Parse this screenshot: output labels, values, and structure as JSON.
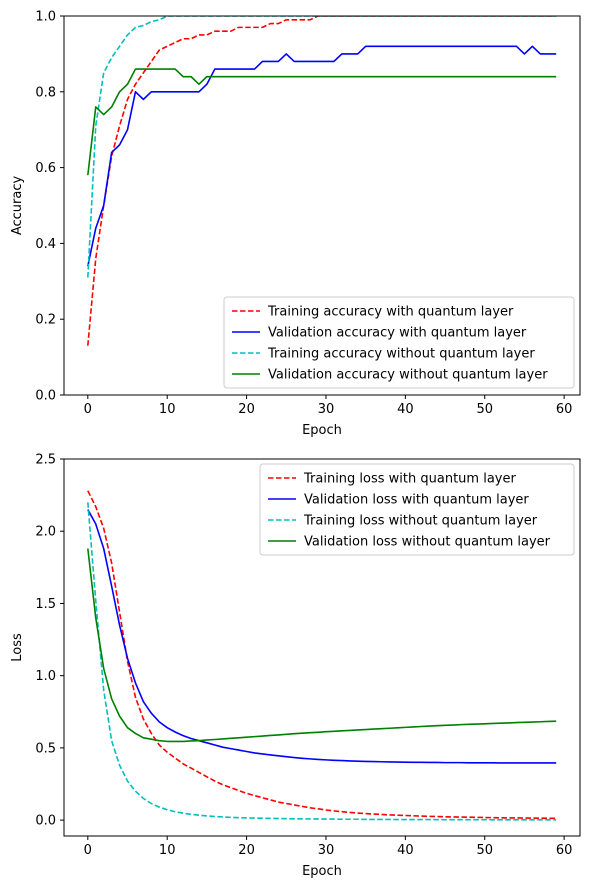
{
  "chart_data": [
    {
      "type": "line",
      "xlabel": "Epoch",
      "ylabel": "Accuracy",
      "xlim": [
        -3,
        62
      ],
      "ylim": [
        0,
        1
      ],
      "xticks": [
        0,
        10,
        20,
        30,
        40,
        50,
        60
      ],
      "yticks": [
        0.0,
        0.2,
        0.4,
        0.6,
        0.8,
        1.0
      ],
      "ytick_labels": [
        "0.0",
        "0.2",
        "0.4",
        "0.6",
        "0.8",
        "1.0"
      ],
      "grid": false,
      "legend_position": "lower-right",
      "series": [
        {
          "name": "Training accuracy with quantum layer",
          "color": "#ff0000",
          "dash": "dashed",
          "x": [
            0,
            1,
            2,
            3,
            4,
            5,
            6,
            7,
            8,
            9,
            10,
            11,
            12,
            13,
            14,
            15,
            16,
            17,
            18,
            19,
            20,
            21,
            22,
            23,
            24,
            25,
            26,
            27,
            28,
            29,
            30,
            31,
            32,
            33,
            34,
            35,
            36,
            37,
            38,
            39,
            40,
            41,
            42,
            43,
            44,
            45,
            46,
            47,
            48,
            49,
            50,
            51,
            52,
            53,
            54,
            55,
            56,
            57,
            58,
            59
          ],
          "y": [
            0.13,
            0.36,
            0.5,
            0.63,
            0.71,
            0.78,
            0.82,
            0.85,
            0.88,
            0.91,
            0.92,
            0.93,
            0.94,
            0.94,
            0.95,
            0.95,
            0.96,
            0.96,
            0.96,
            0.97,
            0.97,
            0.97,
            0.97,
            0.98,
            0.98,
            0.99,
            0.99,
            0.99,
            0.99,
            1.0,
            1.0,
            1.0,
            1.0,
            1.0,
            1.0,
            1.0,
            1.0,
            1.0,
            1.0,
            1.0,
            1.0,
            1.0,
            1.0,
            1.0,
            1.0,
            1.0,
            1.0,
            1.0,
            1.0,
            1.0,
            1.0,
            1.0,
            1.0,
            1.0,
            1.0,
            1.0,
            1.0,
            1.0,
            1.0,
            1.0
          ]
        },
        {
          "name": "Validation accuracy with quantum layer",
          "color": "#0000ff",
          "dash": "solid",
          "x": [
            0,
            1,
            2,
            3,
            4,
            5,
            6,
            7,
            8,
            9,
            10,
            11,
            12,
            13,
            14,
            15,
            16,
            17,
            18,
            19,
            20,
            21,
            22,
            23,
            24,
            25,
            26,
            27,
            28,
            29,
            30,
            31,
            32,
            33,
            34,
            35,
            36,
            37,
            38,
            39,
            40,
            41,
            42,
            43,
            44,
            45,
            46,
            47,
            48,
            49,
            50,
            51,
            52,
            53,
            54,
            55,
            56,
            57,
            58,
            59
          ],
          "y": [
            0.34,
            0.44,
            0.5,
            0.64,
            0.66,
            0.7,
            0.8,
            0.78,
            0.8,
            0.8,
            0.8,
            0.8,
            0.8,
            0.8,
            0.8,
            0.82,
            0.86,
            0.86,
            0.86,
            0.86,
            0.86,
            0.86,
            0.88,
            0.88,
            0.88,
            0.9,
            0.88,
            0.88,
            0.88,
            0.88,
            0.88,
            0.88,
            0.9,
            0.9,
            0.9,
            0.92,
            0.92,
            0.92,
            0.92,
            0.92,
            0.92,
            0.92,
            0.92,
            0.92,
            0.92,
            0.92,
            0.92,
            0.92,
            0.92,
            0.92,
            0.92,
            0.92,
            0.92,
            0.92,
            0.92,
            0.9,
            0.92,
            0.9,
            0.9,
            0.9
          ]
        },
        {
          "name": "Training accuracy without quantum layer",
          "color": "#00bfbf",
          "dash": "dashed",
          "x": [
            0,
            1,
            2,
            3,
            4,
            5,
            6,
            7,
            8,
            9,
            10,
            11,
            12,
            13,
            14,
            15,
            16,
            17,
            18,
            19,
            20,
            21,
            22,
            23,
            24,
            25,
            26,
            27,
            28,
            29,
            30,
            31,
            32,
            33,
            34,
            35,
            36,
            37,
            38,
            39,
            40,
            41,
            42,
            43,
            44,
            45,
            46,
            47,
            48,
            49,
            50,
            51,
            52,
            53,
            54,
            55,
            56,
            57,
            58,
            59
          ],
          "y": [
            0.31,
            0.71,
            0.85,
            0.89,
            0.92,
            0.95,
            0.97,
            0.975,
            0.985,
            0.99,
            1.0,
            1.0,
            1.0,
            1.0,
            1.0,
            1.0,
            1.0,
            1.0,
            1.0,
            1.0,
            1.0,
            1.0,
            1.0,
            1.0,
            1.0,
            1.0,
            1.0,
            1.0,
            1.0,
            1.0,
            1.0,
            1.0,
            1.0,
            1.0,
            1.0,
            1.0,
            1.0,
            1.0,
            1.0,
            1.0,
            1.0,
            1.0,
            1.0,
            1.0,
            1.0,
            1.0,
            1.0,
            1.0,
            1.0,
            1.0,
            1.0,
            1.0,
            1.0,
            1.0,
            1.0,
            1.0,
            1.0,
            1.0,
            1.0,
            1.0
          ]
        },
        {
          "name": "Validation accuracy without quantum layer",
          "color": "#008000",
          "dash": "solid",
          "x": [
            0,
            1,
            2,
            3,
            4,
            5,
            6,
            7,
            8,
            9,
            10,
            11,
            12,
            13,
            14,
            15,
            16,
            17,
            18,
            19,
            20,
            21,
            22,
            23,
            24,
            25,
            26,
            27,
            28,
            29,
            30,
            31,
            32,
            33,
            34,
            35,
            36,
            37,
            38,
            39,
            40,
            41,
            42,
            43,
            44,
            45,
            46,
            47,
            48,
            49,
            50,
            51,
            52,
            53,
            54,
            55,
            56,
            57,
            58,
            59
          ],
          "y": [
            0.58,
            0.76,
            0.74,
            0.76,
            0.8,
            0.82,
            0.86,
            0.86,
            0.86,
            0.86,
            0.86,
            0.86,
            0.84,
            0.84,
            0.82,
            0.84,
            0.84,
            0.84,
            0.84,
            0.84,
            0.84,
            0.84,
            0.84,
            0.84,
            0.84,
            0.84,
            0.84,
            0.84,
            0.84,
            0.84,
            0.84,
            0.84,
            0.84,
            0.84,
            0.84,
            0.84,
            0.84,
            0.84,
            0.84,
            0.84,
            0.84,
            0.84,
            0.84,
            0.84,
            0.84,
            0.84,
            0.84,
            0.84,
            0.84,
            0.84,
            0.84,
            0.84,
            0.84,
            0.84,
            0.84,
            0.84,
            0.84,
            0.84,
            0.84,
            0.84
          ]
        }
      ]
    },
    {
      "type": "line",
      "xlabel": "Epoch",
      "ylabel": "Loss",
      "xlim": [
        -3,
        62
      ],
      "ylim": [
        -0.11,
        2.5
      ],
      "xticks": [
        0,
        10,
        20,
        30,
        40,
        50,
        60
      ],
      "yticks": [
        0.0,
        0.5,
        1.0,
        1.5,
        2.0,
        2.5
      ],
      "ytick_labels": [
        "0.0",
        "0.5",
        "1.0",
        "1.5",
        "2.0",
        "2.5"
      ],
      "grid": false,
      "legend_position": "upper-right",
      "series": [
        {
          "name": "Training loss with quantum layer",
          "color": "#ff0000",
          "dash": "dashed",
          "x": [
            0,
            1,
            2,
            3,
            4,
            5,
            6,
            7,
            8,
            9,
            10,
            11,
            12,
            13,
            14,
            15,
            16,
            17,
            18,
            19,
            20,
            21,
            22,
            23,
            24,
            25,
            26,
            27,
            28,
            29,
            30,
            31,
            32,
            33,
            34,
            35,
            36,
            37,
            38,
            39,
            40,
            41,
            42,
            43,
            44,
            45,
            46,
            47,
            48,
            49,
            50,
            51,
            52,
            53,
            54,
            55,
            56,
            57,
            58,
            59
          ],
          "y": [
            2.28,
            2.17,
            2.02,
            1.78,
            1.44,
            1.1,
            0.85,
            0.7,
            0.6,
            0.52,
            0.47,
            0.43,
            0.39,
            0.36,
            0.33,
            0.3,
            0.27,
            0.245,
            0.225,
            0.205,
            0.185,
            0.17,
            0.155,
            0.14,
            0.125,
            0.115,
            0.105,
            0.095,
            0.085,
            0.078,
            0.07,
            0.064,
            0.058,
            0.053,
            0.049,
            0.045,
            0.042,
            0.039,
            0.036,
            0.034,
            0.032,
            0.03,
            0.028,
            0.026,
            0.025,
            0.023,
            0.022,
            0.021,
            0.02,
            0.019,
            0.018,
            0.017,
            0.016,
            0.015,
            0.015,
            0.014,
            0.014,
            0.013,
            0.013,
            0.012
          ]
        },
        {
          "name": "Validation loss with quantum layer",
          "color": "#0000ff",
          "dash": "solid",
          "x": [
            0,
            1,
            2,
            3,
            4,
            5,
            6,
            7,
            8,
            9,
            10,
            11,
            12,
            13,
            14,
            15,
            16,
            17,
            18,
            19,
            20,
            21,
            22,
            23,
            24,
            25,
            26,
            27,
            28,
            29,
            30,
            31,
            32,
            33,
            34,
            35,
            36,
            37,
            38,
            39,
            40,
            41,
            42,
            43,
            44,
            45,
            46,
            47,
            48,
            49,
            50,
            51,
            52,
            53,
            54,
            55,
            56,
            57,
            58,
            59
          ],
          "y": [
            2.15,
            2.05,
            1.88,
            1.62,
            1.35,
            1.12,
            0.95,
            0.82,
            0.74,
            0.68,
            0.64,
            0.61,
            0.585,
            0.565,
            0.55,
            0.535,
            0.52,
            0.505,
            0.495,
            0.485,
            0.475,
            0.465,
            0.458,
            0.451,
            0.445,
            0.439,
            0.433,
            0.428,
            0.424,
            0.42,
            0.417,
            0.414,
            0.412,
            0.41,
            0.408,
            0.406,
            0.405,
            0.404,
            0.403,
            0.402,
            0.401,
            0.4,
            0.4,
            0.399,
            0.399,
            0.398,
            0.398,
            0.398,
            0.397,
            0.397,
            0.397,
            0.397,
            0.396,
            0.396,
            0.396,
            0.396,
            0.396,
            0.396,
            0.396,
            0.396
          ]
        },
        {
          "name": "Training loss without quantum layer",
          "color": "#00bfbf",
          "dash": "dashed",
          "x": [
            0,
            1,
            2,
            3,
            4,
            5,
            6,
            7,
            8,
            9,
            10,
            11,
            12,
            13,
            14,
            15,
            16,
            17,
            18,
            19,
            20,
            21,
            22,
            23,
            24,
            25,
            26,
            27,
            28,
            29,
            30,
            31,
            32,
            33,
            34,
            35,
            36,
            37,
            38,
            39,
            40,
            41,
            42,
            43,
            44,
            45,
            46,
            47,
            48,
            49,
            50,
            51,
            52,
            53,
            54,
            55,
            56,
            57,
            58,
            59
          ],
          "y": [
            2.2,
            1.52,
            0.9,
            0.55,
            0.38,
            0.27,
            0.2,
            0.15,
            0.115,
            0.09,
            0.072,
            0.058,
            0.048,
            0.04,
            0.034,
            0.029,
            0.025,
            0.022,
            0.019,
            0.017,
            0.015,
            0.014,
            0.013,
            0.012,
            0.011,
            0.01,
            0.009,
            0.009,
            0.008,
            0.008,
            0.007,
            0.007,
            0.006,
            0.006,
            0.006,
            0.005,
            0.005,
            0.005,
            0.005,
            0.004,
            0.004,
            0.004,
            0.004,
            0.004,
            0.003,
            0.003,
            0.003,
            0.003,
            0.003,
            0.003,
            0.003,
            0.002,
            0.002,
            0.002,
            0.002,
            0.002,
            0.002,
            0.002,
            0.002,
            0.002
          ]
        },
        {
          "name": "Validation loss without quantum layer",
          "color": "#008000",
          "dash": "solid",
          "x": [
            0,
            1,
            2,
            3,
            4,
            5,
            6,
            7,
            8,
            9,
            10,
            11,
            12,
            13,
            14,
            15,
            16,
            17,
            18,
            19,
            20,
            21,
            22,
            23,
            24,
            25,
            26,
            27,
            28,
            29,
            30,
            31,
            32,
            33,
            34,
            35,
            36,
            37,
            38,
            39,
            40,
            41,
            42,
            43,
            44,
            45,
            46,
            47,
            48,
            49,
            50,
            51,
            52,
            53,
            54,
            55,
            56,
            57,
            58,
            59
          ],
          "y": [
            1.88,
            1.4,
            1.05,
            0.84,
            0.72,
            0.64,
            0.6,
            0.57,
            0.56,
            0.55,
            0.545,
            0.545,
            0.545,
            0.548,
            0.55,
            0.555,
            0.558,
            0.562,
            0.566,
            0.57,
            0.574,
            0.578,
            0.582,
            0.586,
            0.59,
            0.594,
            0.598,
            0.602,
            0.605,
            0.608,
            0.612,
            0.615,
            0.618,
            0.621,
            0.624,
            0.627,
            0.63,
            0.633,
            0.636,
            0.639,
            0.642,
            0.645,
            0.648,
            0.651,
            0.654,
            0.656,
            0.658,
            0.661,
            0.663,
            0.665,
            0.667,
            0.669,
            0.671,
            0.673,
            0.675,
            0.677,
            0.679,
            0.681,
            0.683,
            0.685
          ]
        }
      ]
    }
  ]
}
